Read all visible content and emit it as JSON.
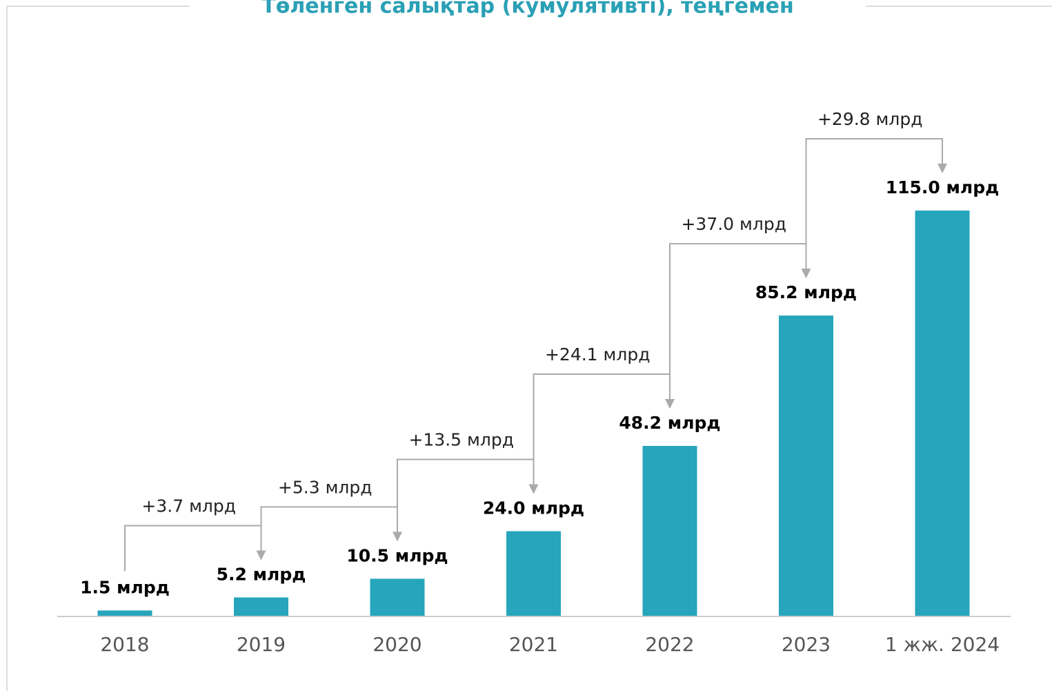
{
  "chart_data": {
    "type": "bar",
    "title": "Төленген салықтар (кумулятивті), теңгемен",
    "categories": [
      "2018",
      "2019",
      "2020",
      "2021",
      "2022",
      "2023",
      "1 жж. 2024"
    ],
    "values": [
      1.5,
      5.2,
      10.5,
      24.0,
      48.2,
      85.2,
      115.0
    ],
    "value_labels": [
      "1.5 млрд",
      "5.2 млрд",
      "10.5 млрд",
      "24.0 млрд",
      "48.2 млрд",
      "85.2 млрд",
      "115.0 млрд"
    ],
    "annotations": [
      "+3.7 млрд",
      "+5.3 млрд",
      "+13.5 млрд",
      "+24.1 млрд",
      "+37.0 млрд",
      "+29.8 млрд"
    ],
    "color": "#26a5bc"
  }
}
